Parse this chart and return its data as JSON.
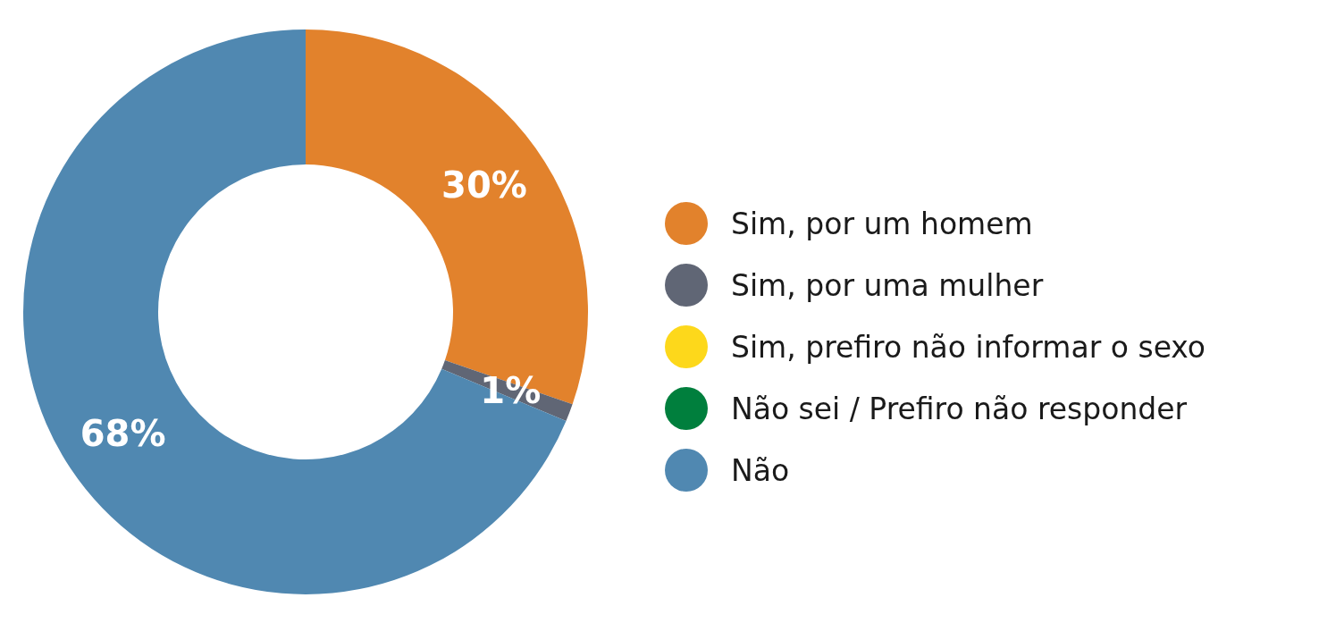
{
  "chart_data": {
    "type": "donut",
    "categories": [
      "Sim, por um homem",
      "Sim, por uma mulher",
      "Sim, prefiro não informar o sexo",
      "Não sei / Prefiro não responder",
      "Não"
    ],
    "values": [
      30,
      1,
      0,
      0,
      68
    ],
    "colors": [
      "#e2822c",
      "#606675",
      "#fdd81b",
      "#007f3d",
      "#5088b1"
    ],
    "value_labels": [
      "30%",
      "1%",
      null,
      null,
      "68%"
    ],
    "legend": "right"
  }
}
